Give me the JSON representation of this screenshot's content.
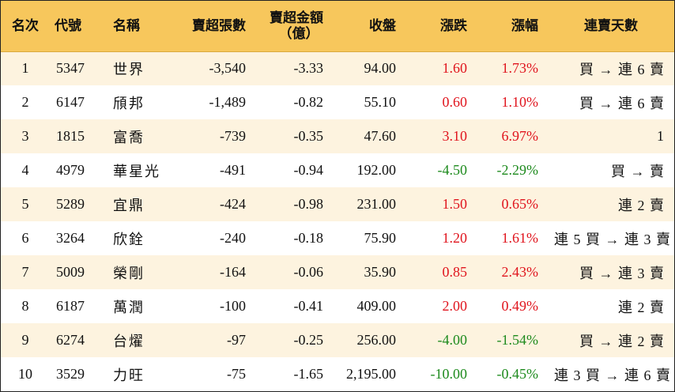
{
  "headers": {
    "rank": "名次",
    "code": "代號",
    "name": "名稱",
    "sell_vol": "賣超張數",
    "sell_amt_line1": "賣超金額",
    "sell_amt_line2": "（億）",
    "close": "收盤",
    "change": "漲跌",
    "pct": "漲幅",
    "streak": "連賣天數"
  },
  "colors": {
    "header_bg": "#f7c75c",
    "stripe": "#fdf3df",
    "up": "#e0141d",
    "down": "#1d8a1d"
  },
  "rows": [
    {
      "rank": "1",
      "code": "5347",
      "name": "世界",
      "sell_vol": "-3,540",
      "sell_amt": "-3.33",
      "close": "94.00",
      "change": "1.60",
      "pct": "1.73%",
      "streak": "買 → 連 6 賣",
      "dir": "up"
    },
    {
      "rank": "2",
      "code": "6147",
      "name": "頎邦",
      "sell_vol": "-1,489",
      "sell_amt": "-0.82",
      "close": "55.10",
      "change": "0.60",
      "pct": "1.10%",
      "streak": "買 → 連 6 賣",
      "dir": "up"
    },
    {
      "rank": "3",
      "code": "1815",
      "name": "富喬",
      "sell_vol": "-739",
      "sell_amt": "-0.35",
      "close": "47.60",
      "change": "3.10",
      "pct": "6.97%",
      "streak": "1",
      "dir": "up"
    },
    {
      "rank": "4",
      "code": "4979",
      "name": "華星光",
      "sell_vol": "-491",
      "sell_amt": "-0.94",
      "close": "192.00",
      "change": "-4.50",
      "pct": "-2.29%",
      "streak": "買 → 賣",
      "dir": "down"
    },
    {
      "rank": "5",
      "code": "5289",
      "name": "宜鼎",
      "sell_vol": "-424",
      "sell_amt": "-0.98",
      "close": "231.00",
      "change": "1.50",
      "pct": "0.65%",
      "streak": "連 2 賣",
      "dir": "up"
    },
    {
      "rank": "6",
      "code": "3264",
      "name": "欣銓",
      "sell_vol": "-240",
      "sell_amt": "-0.18",
      "close": "75.90",
      "change": "1.20",
      "pct": "1.61%",
      "streak": "連 5 買 → 連 3 賣",
      "dir": "up"
    },
    {
      "rank": "7",
      "code": "5009",
      "name": "榮剛",
      "sell_vol": "-164",
      "sell_amt": "-0.06",
      "close": "35.90",
      "change": "0.85",
      "pct": "2.43%",
      "streak": "買 → 連 3 賣",
      "dir": "up"
    },
    {
      "rank": "8",
      "code": "6187",
      "name": "萬潤",
      "sell_vol": "-100",
      "sell_amt": "-0.41",
      "close": "409.00",
      "change": "2.00",
      "pct": "0.49%",
      "streak": "連 2 賣",
      "dir": "up"
    },
    {
      "rank": "9",
      "code": "6274",
      "name": "台燿",
      "sell_vol": "-97",
      "sell_amt": "-0.25",
      "close": "256.00",
      "change": "-4.00",
      "pct": "-1.54%",
      "streak": "買 → 連 2 賣",
      "dir": "down"
    },
    {
      "rank": "10",
      "code": "3529",
      "name": "力旺",
      "sell_vol": "-75",
      "sell_amt": "-1.65",
      "close": "2,195.00",
      "change": "-10.00",
      "pct": "-0.45%",
      "streak": "連 3 買 → 連 6 賣",
      "dir": "down"
    }
  ]
}
